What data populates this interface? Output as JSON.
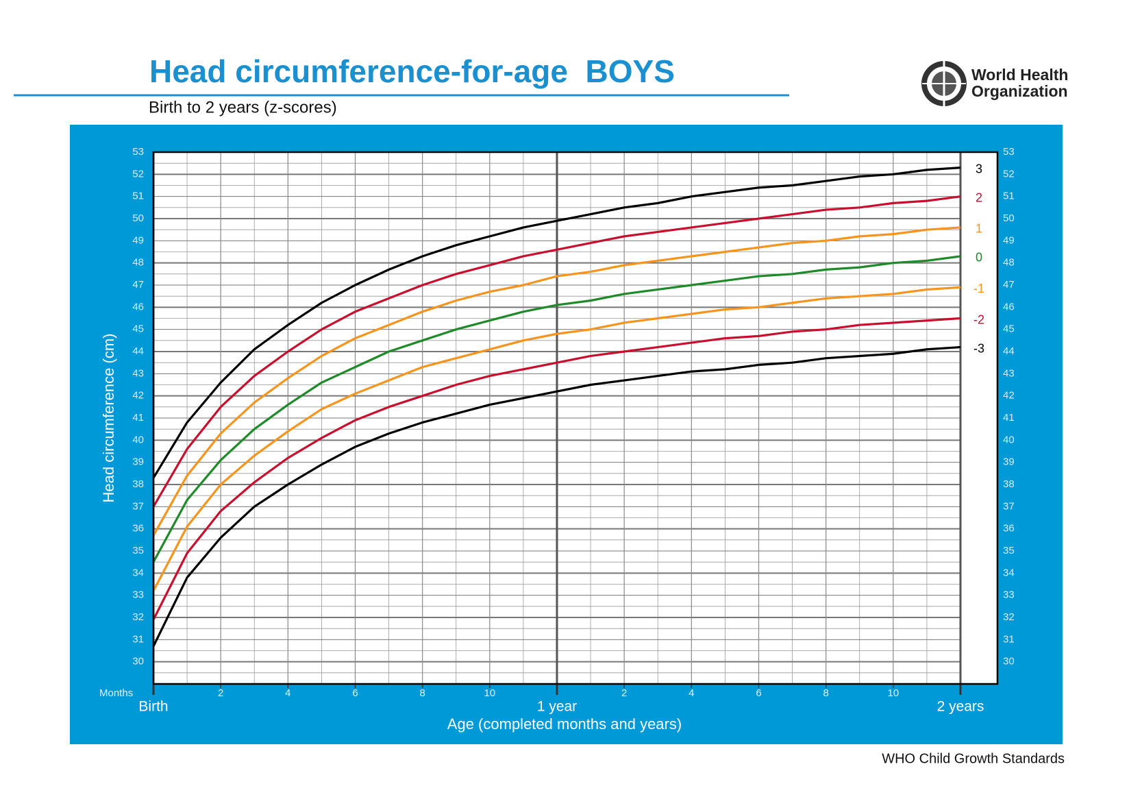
{
  "chart_data": {
    "type": "line",
    "title": "Head circumference-for-age  BOYS",
    "subtitle": "Birth to 2 years (z-scores)",
    "logo_text": [
      "World Health",
      "Organization"
    ],
    "footer": "WHO Child Growth Standards",
    "y_label": "Head circumference (cm)",
    "x_label": "Age (completed months and years)",
    "x_unit_label": "Months",
    "x": [
      0,
      1,
      2,
      3,
      4,
      5,
      6,
      7,
      8,
      9,
      10,
      11,
      12,
      13,
      14,
      15,
      16,
      17,
      18,
      19,
      20,
      21,
      22,
      23,
      24
    ],
    "series": [
      {
        "name": "3",
        "color": "#000000",
        "values": [
          38.3,
          40.8,
          42.6,
          44.1,
          45.2,
          46.2,
          47.0,
          47.7,
          48.3,
          48.8,
          49.2,
          49.6,
          49.9,
          50.2,
          50.5,
          50.7,
          51.0,
          51.2,
          51.4,
          51.5,
          51.7,
          51.9,
          52.0,
          52.2,
          52.3
        ]
      },
      {
        "name": "2",
        "color": "#c8102e",
        "values": [
          37.0,
          39.6,
          41.5,
          42.9,
          44.0,
          45.0,
          45.8,
          46.4,
          47.0,
          47.5,
          47.9,
          48.3,
          48.6,
          48.9,
          49.2,
          49.4,
          49.6,
          49.8,
          50.0,
          50.2,
          50.4,
          50.5,
          50.7,
          50.8,
          51.0
        ]
      },
      {
        "name": "1",
        "color": "#f7941d",
        "values": [
          35.7,
          38.4,
          40.3,
          41.7,
          42.8,
          43.8,
          44.6,
          45.2,
          45.8,
          46.3,
          46.7,
          47.0,
          47.4,
          47.6,
          47.9,
          48.1,
          48.3,
          48.5,
          48.7,
          48.9,
          49.0,
          49.2,
          49.3,
          49.5,
          49.6
        ]
      },
      {
        "name": "0",
        "color": "#1e8a28",
        "values": [
          34.5,
          37.3,
          39.1,
          40.5,
          41.6,
          42.6,
          43.3,
          44.0,
          44.5,
          45.0,
          45.4,
          45.8,
          46.1,
          46.3,
          46.6,
          46.8,
          47.0,
          47.2,
          47.4,
          47.5,
          47.7,
          47.8,
          48.0,
          48.1,
          48.3
        ]
      },
      {
        "name": "-1",
        "color": "#f7941d",
        "values": [
          33.2,
          36.1,
          38.0,
          39.3,
          40.4,
          41.4,
          42.1,
          42.7,
          43.3,
          43.7,
          44.1,
          44.5,
          44.8,
          45.0,
          45.3,
          45.5,
          45.7,
          45.9,
          46.0,
          46.2,
          46.4,
          46.5,
          46.6,
          46.8,
          46.9
        ]
      },
      {
        "name": "-2",
        "color": "#c8102e",
        "values": [
          31.9,
          34.9,
          36.8,
          38.1,
          39.2,
          40.1,
          40.9,
          41.5,
          42.0,
          42.5,
          42.9,
          43.2,
          43.5,
          43.8,
          44.0,
          44.2,
          44.4,
          44.6,
          44.7,
          44.9,
          45.0,
          45.2,
          45.3,
          45.4,
          45.5
        ]
      },
      {
        "name": "-3",
        "color": "#000000",
        "values": [
          30.7,
          33.8,
          35.6,
          37.0,
          38.0,
          38.9,
          39.7,
          40.3,
          40.8,
          41.2,
          41.6,
          41.9,
          42.2,
          42.5,
          42.7,
          42.9,
          43.1,
          43.2,
          43.4,
          43.5,
          43.7,
          43.8,
          43.9,
          44.1,
          44.2
        ]
      }
    ],
    "xlim": [
      0,
      24
    ],
    "xticks": [
      {
        "value": 0,
        "label": "Birth"
      },
      2,
      4,
      6,
      8,
      10,
      {
        "value": 12,
        "label": "1 year"
      },
      {
        "value": 14,
        "label": "2"
      },
      {
        "value": 16,
        "label": "4"
      },
      {
        "value": 18,
        "label": "6"
      },
      {
        "value": 20,
        "label": "8"
      },
      {
        "value": 22,
        "label": "10"
      },
      {
        "value": 24,
        "label": "2 years"
      }
    ],
    "ylim": [
      29,
      53
    ],
    "yticks": [
      30,
      31,
      32,
      33,
      34,
      35,
      36,
      37,
      38,
      39,
      40,
      41,
      42,
      43,
      44,
      45,
      46,
      47,
      48,
      49,
      50,
      51,
      52,
      53
    ],
    "grid": true
  }
}
